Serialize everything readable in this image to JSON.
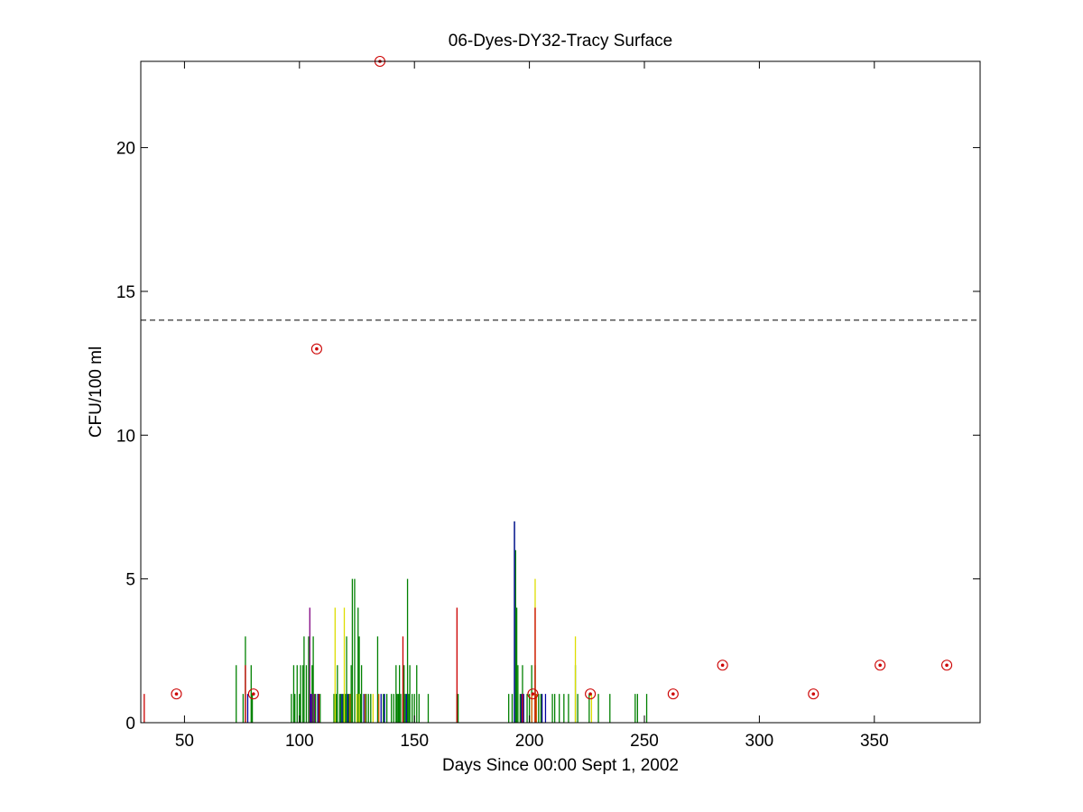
{
  "chart_data": {
    "type": "bar",
    "title": "06-Dyes-DY32-Tracy Surface",
    "xlabel": "Days Since 00:00 Sept 1, 2002",
    "ylabel": "CFU/100 ml",
    "xlim": [
      31,
      396
    ],
    "ylim": [
      0,
      23
    ],
    "xticks": [
      50,
      100,
      150,
      200,
      250,
      300,
      350
    ],
    "yticks": [
      0,
      5,
      10,
      15,
      20
    ],
    "grid": false,
    "legend": "none",
    "threshold": {
      "y": 14,
      "style": "dashed",
      "color": "#000000"
    },
    "bar_series": [
      {
        "color": "#008000",
        "bars": [
          [
            72.5,
            2
          ],
          [
            75.5,
            1
          ],
          [
            76.5,
            3
          ],
          [
            79,
            2
          ],
          [
            79.5,
            1
          ],
          [
            96.5,
            1
          ],
          [
            97.5,
            2
          ],
          [
            98,
            1
          ],
          [
            99,
            2
          ],
          [
            100,
            1
          ],
          [
            100.5,
            2
          ],
          [
            101.5,
            2
          ],
          [
            102,
            3
          ],
          [
            103,
            2
          ],
          [
            104,
            3
          ],
          [
            104.5,
            1
          ],
          [
            105.5,
            2
          ],
          [
            106,
            3
          ],
          [
            107,
            1
          ],
          [
            108,
            1
          ],
          [
            109,
            1
          ],
          [
            115,
            1
          ],
          [
            116,
            1
          ],
          [
            116.5,
            2
          ],
          [
            117.5,
            1
          ],
          [
            118,
            1
          ],
          [
            119,
            1
          ],
          [
            120,
            1
          ],
          [
            120.5,
            3
          ],
          [
            121.5,
            1
          ],
          [
            122,
            1
          ],
          [
            122.5,
            2
          ],
          [
            123,
            5
          ],
          [
            124,
            5
          ],
          [
            125,
            1
          ],
          [
            125.5,
            4
          ],
          [
            126,
            3
          ],
          [
            126.5,
            1
          ],
          [
            127,
            2
          ],
          [
            129,
            1
          ],
          [
            130,
            1
          ],
          [
            131,
            1
          ],
          [
            134,
            3
          ],
          [
            136.5,
            1
          ],
          [
            138,
            1
          ],
          [
            140,
            1
          ],
          [
            141,
            1
          ],
          [
            142,
            2
          ],
          [
            142.5,
            1
          ],
          [
            143,
            1
          ],
          [
            143.5,
            2
          ],
          [
            144,
            1
          ],
          [
            145,
            1
          ],
          [
            145.5,
            2
          ],
          [
            146,
            1
          ],
          [
            147,
            5
          ],
          [
            147.5,
            1
          ],
          [
            148,
            2
          ],
          [
            149,
            1
          ],
          [
            150,
            1
          ],
          [
            151,
            2
          ],
          [
            152,
            1
          ],
          [
            156,
            1
          ],
          [
            168.5,
            1
          ],
          [
            169,
            1
          ],
          [
            191,
            1
          ],
          [
            192.5,
            1
          ],
          [
            193.5,
            7
          ],
          [
            194,
            6
          ],
          [
            194.5,
            4
          ],
          [
            195,
            2
          ],
          [
            196,
            1
          ],
          [
            197,
            2
          ],
          [
            199,
            1
          ],
          [
            200,
            1
          ],
          [
            201,
            2
          ],
          [
            202.5,
            2
          ],
          [
            203,
            1
          ],
          [
            204,
            1
          ],
          [
            205,
            1
          ],
          [
            210,
            1
          ],
          [
            211,
            1
          ],
          [
            213,
            1
          ],
          [
            215,
            1
          ],
          [
            217,
            1
          ],
          [
            220,
            2
          ],
          [
            221,
            1
          ],
          [
            226,
            1
          ],
          [
            230,
            1
          ],
          [
            235,
            1
          ],
          [
            246,
            1
          ],
          [
            247,
            1
          ],
          [
            251,
            1
          ]
        ]
      },
      {
        "color": "#0000a0",
        "bars": [
          [
            77.5,
            1
          ],
          [
            105,
            1
          ],
          [
            108,
            1
          ],
          [
            118.5,
            1
          ],
          [
            121,
            1
          ],
          [
            128,
            1
          ],
          [
            135.5,
            1
          ],
          [
            137,
            1
          ],
          [
            146.5,
            1
          ],
          [
            193.5,
            7
          ],
          [
            196.5,
            1
          ],
          [
            197.5,
            1
          ],
          [
            205.5,
            1
          ],
          [
            207,
            1
          ]
        ]
      },
      {
        "color": "#800080",
        "bars": [
          [
            104.5,
            4
          ],
          [
            105.5,
            1
          ],
          [
            106.5,
            1
          ]
        ]
      },
      {
        "color": "#dddd00",
        "bars": [
          [
            115.5,
            4
          ],
          [
            119.5,
            4
          ],
          [
            125,
            1
          ],
          [
            126,
            1
          ],
          [
            132,
            1
          ],
          [
            202.5,
            5
          ],
          [
            220,
            3
          ],
          [
            227,
            1
          ]
        ]
      },
      {
        "color": "#e06000",
        "bars": [
          [
            122,
            1
          ],
          [
            128.5,
            1
          ],
          [
            134.5,
            1
          ],
          [
            201,
            1
          ],
          [
            203,
            1
          ]
        ]
      },
      {
        "color": "#cc0000",
        "bars": [
          [
            32.5,
            1
          ],
          [
            76.5,
            2
          ],
          [
            108.5,
            1
          ],
          [
            145,
            3
          ],
          [
            168.5,
            4
          ],
          [
            197,
            1
          ],
          [
            202.5,
            4
          ]
        ]
      }
    ],
    "marker_series": {
      "style": "red circle with center dot",
      "color": "#cc0000",
      "points": [
        [
          46.5,
          1
        ],
        [
          80,
          1
        ],
        [
          107.5,
          13
        ],
        [
          135,
          23
        ],
        [
          201.5,
          1
        ],
        [
          226.5,
          1
        ],
        [
          262.5,
          1
        ],
        [
          284,
          2
        ],
        [
          323.5,
          1
        ],
        [
          352.5,
          2
        ],
        [
          381.5,
          2
        ]
      ]
    }
  }
}
